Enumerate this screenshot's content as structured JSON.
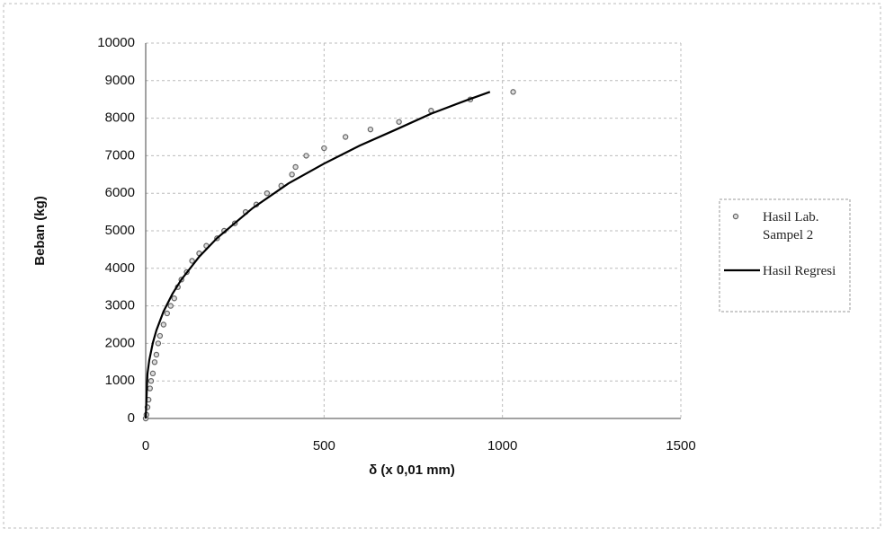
{
  "chart_data": {
    "type": "scatter-line",
    "xlabel": "δ (x 0,01 mm)",
    "ylabel": "Beban (kg)",
    "xlim": [
      0,
      1500
    ],
    "xticks": [
      0,
      500,
      1000,
      1500
    ],
    "ylim": [
      0,
      10000
    ],
    "yticks": [
      0,
      1000,
      2000,
      3000,
      4000,
      5000,
      6000,
      7000,
      8000,
      9000,
      10000
    ],
    "grid": true,
    "legend": "right",
    "series": [
      {
        "name": "Hasil Lab. Sampel 2",
        "color": "#666666",
        "mode": "markers",
        "x": [
          0,
          2,
          5,
          8,
          12,
          15,
          20,
          25,
          30,
          35,
          40,
          50,
          60,
          70,
          80,
          90,
          100,
          115,
          130,
          150,
          170,
          200,
          220,
          250,
          280,
          310,
          340,
          380,
          410,
          420,
          450,
          500,
          560,
          630,
          710,
          800,
          910,
          1030
        ],
        "values": [
          0,
          100,
          300,
          500,
          800,
          1000,
          1200,
          1500,
          1700,
          2000,
          2200,
          2500,
          2800,
          3000,
          3200,
          3500,
          3700,
          3900,
          4200,
          4400,
          4600,
          4800,
          5000,
          5200,
          5500,
          5700,
          6000,
          6200,
          6500,
          6700,
          7000,
          7200,
          7500,
          7700,
          7900,
          8200,
          8500,
          8700
        ]
      },
      {
        "name": "Hasil Regresi",
        "color": "#000000",
        "mode": "line",
        "x": [
          0,
          5,
          10,
          20,
          30,
          50,
          75,
          100,
          150,
          200,
          300,
          400,
          500,
          600,
          700,
          800,
          900,
          965
        ],
        "values": [
          0,
          1193,
          1552,
          2015,
          2348,
          2850,
          3320,
          3700,
          4310,
          4805,
          5605,
          6260,
          6790,
          7270,
          7690,
          8120,
          8480,
          8700
        ]
      }
    ]
  }
}
